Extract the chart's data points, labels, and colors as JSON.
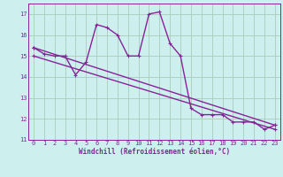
{
  "background_color": "#cdf0ee",
  "plot_bg_color": "#cdf0ee",
  "grid_color": "#aaccbb",
  "line_color": "#882299",
  "title": "",
  "xlabel": "Windchill (Refroidissement éolien,°C)",
  "ylim": [
    11,
    17.5
  ],
  "yticks": [
    11,
    12,
    13,
    14,
    15,
    16,
    17
  ],
  "xlim": [
    -0.5,
    23.5
  ],
  "xticks": [
    0,
    1,
    2,
    3,
    4,
    5,
    6,
    7,
    8,
    9,
    10,
    11,
    12,
    13,
    14,
    15,
    16,
    17,
    18,
    19,
    20,
    21,
    22,
    23
  ],
  "series1_x": [
    0,
    1,
    2,
    3,
    4,
    5,
    6,
    7,
    8,
    9,
    10,
    11,
    12,
    13,
    14,
    15,
    16,
    17,
    18,
    19,
    20,
    21,
    22,
    23
  ],
  "series1_y": [
    15.4,
    15.1,
    15.0,
    15.0,
    14.1,
    14.7,
    16.5,
    16.35,
    16.0,
    15.0,
    15.0,
    17.0,
    17.1,
    15.6,
    15.0,
    12.5,
    12.2,
    12.2,
    12.2,
    11.85,
    11.85,
    11.85,
    11.5,
    11.7
  ],
  "trend1_x": [
    0,
    23
  ],
  "trend1_y": [
    15.4,
    11.7
  ],
  "trend2_x": [
    0,
    23
  ],
  "trend2_y": [
    15.0,
    11.5
  ],
  "lw": 1.0,
  "ms": 3.5
}
